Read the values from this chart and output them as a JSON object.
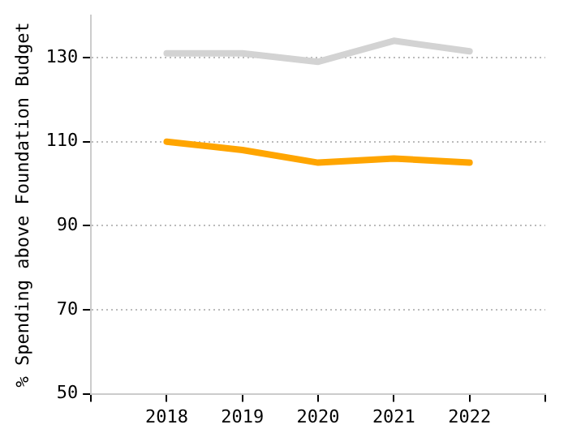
{
  "chart_data": {
    "type": "line",
    "ylabel": "% Spending above Foundation Budget",
    "x": [
      2018,
      2019,
      2020,
      2021,
      2022
    ],
    "series": [
      {
        "color": "#d3d3d3",
        "values": [
          131,
          131,
          129,
          134,
          131.5
        ]
      },
      {
        "color": "#ffa500",
        "values": [
          110,
          108,
          105,
          106,
          105
        ]
      }
    ],
    "xlim": [
      2017,
      2023
    ],
    "xticks": [
      {
        "value": 2017,
        "label": null
      },
      2018,
      2019,
      2020,
      2021,
      2022,
      {
        "value": 2023,
        "label": null
      }
    ],
    "ylim": [
      50,
      140
    ],
    "yticks": [
      50,
      70,
      90,
      110,
      130
    ],
    "grid": "y",
    "legend": false,
    "marker": "none",
    "line_style": "solid"
  }
}
